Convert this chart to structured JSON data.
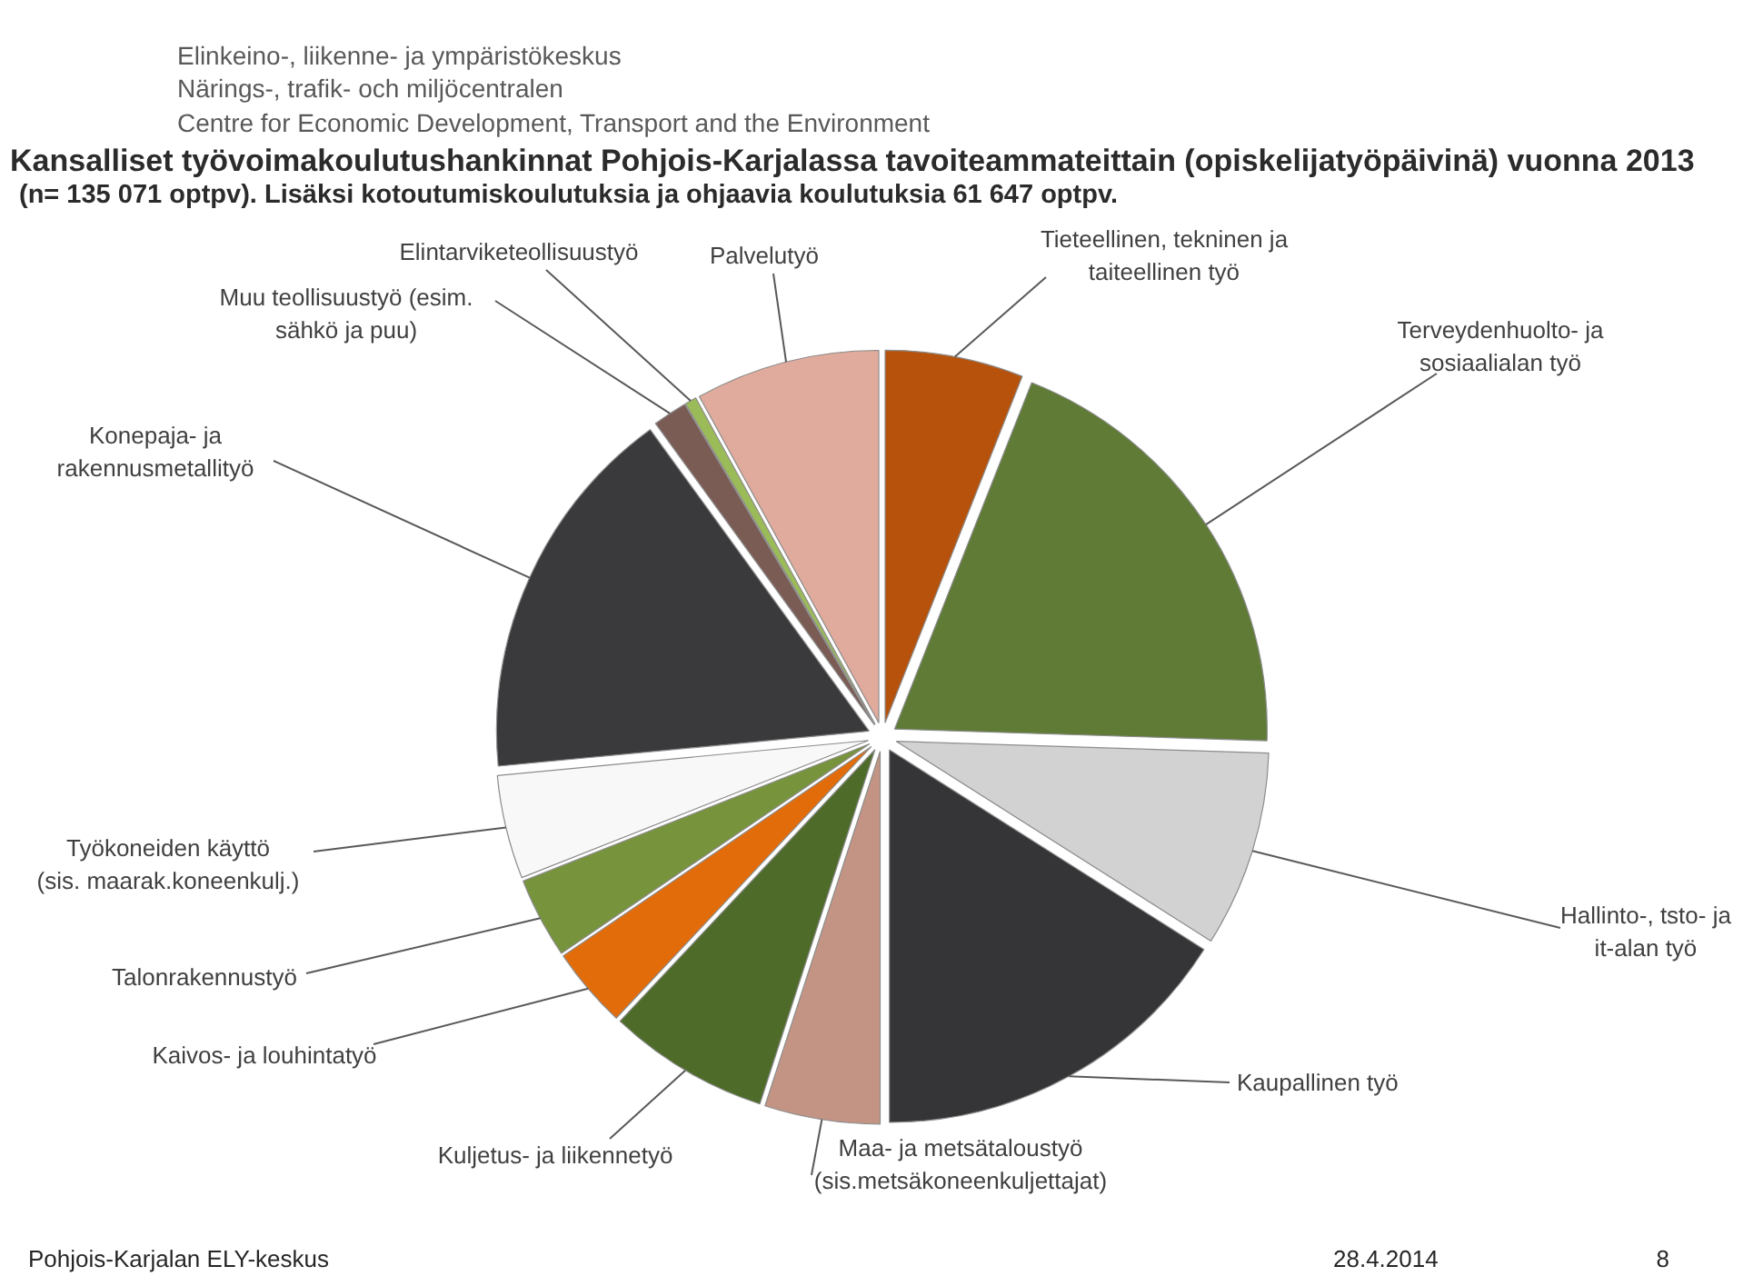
{
  "chart_data": {
    "type": "pie",
    "title": "Kansalliset työvoimakoulutushankinnat Pohjois-Karjalassa tavoiteammateittain (opiskelijatyöpäivinä) vuonna 2013",
    "subtitle": "(n= 135 071 optpv). Lisäksi kotoutumiskoulutuksia ja ohjaavia koulutuksia 61 647 optpv.",
    "categories": [
      "Tieteellinen, tekninen ja\ntaiteellinen työ",
      "Terveydenhuolto- ja\nsosiaalialan työ",
      "Hallinto-, tsto- ja\nit-alan työ",
      "Kaupallinen työ",
      "Maa- ja metsätaloustyö\n(sis.metsäkoneenkuljettajat)",
      "Kuljetus- ja liikennetyö",
      "Kaivos- ja louhintatyö",
      "Talonrakennustyö",
      "Työkoneiden käyttö\n(sis. maarak.koneenkulj.)",
      "Konepaja- ja\nrakennusmetallityö",
      "Muu teollisuustyö (esim.\nsähkö ja puu)",
      "Elintarviketeollisuustyö",
      "Palvelutyö"
    ],
    "values": [
      6,
      19.5,
      8.5,
      16,
      5,
      7,
      3.5,
      3.5,
      4.5,
      16.5,
      1.5,
      0.5,
      8
    ],
    "colors": [
      "#b6520c",
      "#5f7b36",
      "#d2d2d2",
      "#353537",
      "#c39484",
      "#4e6b2a",
      "#e36c0a",
      "#77933c",
      "#f8f8f8",
      "#3a3a3c",
      "#7a5c55",
      "#9bbb59",
      "#e0ab9c"
    ],
    "annotations": [
      "Elinkeino-, liikenne- ja ympäristökeskus",
      "Närings-, trafik- och miljöcentralen",
      "Centre for Economic Development, Transport and the Environment",
      "Pohjois-Karjalan ELY-keskus",
      "28.4.2014",
      "8"
    ]
  }
}
